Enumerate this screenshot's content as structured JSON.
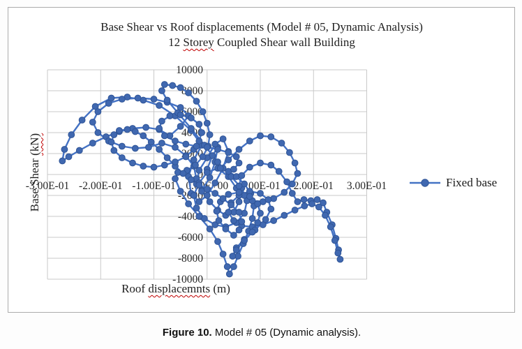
{
  "chart": {
    "title_line1": "Base Shear vs Roof displacements (Model # 05, Dynamic Analysis)",
    "title_line2_parts": [
      "12 ",
      "Storey",
      " Coupled Shear wall Building"
    ],
    "y_axis_title_parts": [
      "Base Shear ",
      "(kN)"
    ],
    "x_axis_title_parts": [
      "Roof ",
      "displacemnts",
      " (m)"
    ],
    "legend_label": "Fixed base"
  },
  "caption": {
    "label": "Figure 10.",
    "text": " Model # 05 (Dynamic analysis)."
  },
  "chart_data": {
    "type": "line",
    "subtype": "scatter-line hysteresis loops (base shear vs roof displacement time history)",
    "title": "Base Shear vs Roof displacements (Model # 05, Dynamic Analysis) 12 Storey Coupled Shear wall Building",
    "xlabel": "Roof displacemnts (m)",
    "ylabel": "Base Shear (kN)",
    "xlim": [
      -0.3,
      0.3
    ],
    "ylim": [
      -10000,
      10000
    ],
    "grid": true,
    "legend_position": "right-middle",
    "x_tick_values": [
      -0.3,
      -0.2,
      -0.1,
      0,
      0.1,
      0.2,
      0.3
    ],
    "x_tick_labels": [
      "-3.00E-01",
      "-2.00E-01",
      "-1.00E-01",
      "0.00E+00",
      "1.00E-01",
      "2.00E-01",
      "3.00E-01"
    ],
    "y_tick_values": [
      10000,
      8000,
      6000,
      4000,
      2000,
      0,
      -2000,
      -4000,
      -6000,
      -8000,
      -10000
    ],
    "y_tick_labels": [
      "10000",
      "8000",
      "6000",
      "4000",
      "2000",
      "0",
      "-2000",
      "-4000",
      "-6000",
      "-8000",
      "-10000"
    ],
    "colors": {
      "series": "#4472C4",
      "marker_fill": "#4068B0",
      "marker_stroke": "#2F5496",
      "gridline": "#c9c9c9",
      "text": "#262626"
    },
    "series": [
      {
        "name": "Fixed base",
        "marker": "circle",
        "points": [
          [
            0.0,
            500
          ],
          [
            0.01,
            1800
          ],
          [
            0.02,
            2600
          ],
          [
            0.015,
            1200
          ],
          [
            0.005,
            -300
          ],
          [
            -0.01,
            -1500
          ],
          [
            -0.02,
            -900
          ],
          [
            -0.015,
            400
          ],
          [
            0.0,
            1600
          ],
          [
            0.015,
            2900
          ],
          [
            0.03,
            3400
          ],
          [
            0.04,
            2200
          ],
          [
            0.03,
            600
          ],
          [
            0.015,
            -800
          ],
          [
            0.0,
            -2000
          ],
          [
            -0.015,
            -2600
          ],
          [
            -0.03,
            -1800
          ],
          [
            -0.035,
            -200
          ],
          [
            -0.025,
            1400
          ],
          [
            -0.01,
            2800
          ],
          [
            -0.03,
            4200
          ],
          [
            -0.06,
            5600
          ],
          [
            -0.09,
            6600
          ],
          [
            -0.12,
            7100
          ],
          [
            -0.15,
            7400
          ],
          [
            -0.18,
            7300
          ],
          [
            -0.21,
            6500
          ],
          [
            -0.235,
            5200
          ],
          [
            -0.255,
            3800
          ],
          [
            -0.268,
            2400
          ],
          [
            -0.272,
            1300
          ],
          [
            -0.26,
            1700
          ],
          [
            -0.24,
            2300
          ],
          [
            -0.215,
            3000
          ],
          [
            -0.19,
            3600
          ],
          [
            -0.165,
            4100
          ],
          [
            -0.14,
            4400
          ],
          [
            -0.115,
            4500
          ],
          [
            -0.09,
            4300
          ],
          [
            -0.07,
            3700
          ],
          [
            -0.05,
            4600
          ],
          [
            -0.035,
            5600
          ],
          [
            -0.05,
            6400
          ],
          [
            -0.075,
            6900
          ],
          [
            -0.1,
            7200
          ],
          [
            -0.13,
            7300
          ],
          [
            -0.16,
            7200
          ],
          [
            -0.185,
            6800
          ],
          [
            -0.205,
            6000
          ],
          [
            -0.215,
            5000
          ],
          [
            -0.205,
            4000
          ],
          [
            -0.185,
            3200
          ],
          [
            -0.16,
            2700
          ],
          [
            -0.135,
            2500
          ],
          [
            -0.11,
            2600
          ],
          [
            -0.085,
            3000
          ],
          [
            -0.06,
            2600
          ],
          [
            -0.04,
            1800
          ],
          [
            -0.025,
            800
          ],
          [
            -0.02,
            -400
          ],
          [
            -0.01,
            -1600
          ],
          [
            0.005,
            -2600
          ],
          [
            0.02,
            -3400
          ],
          [
            0.035,
            -3900
          ],
          [
            0.05,
            -3600
          ],
          [
            0.06,
            -2600
          ],
          [
            0.055,
            -1300
          ],
          [
            0.04,
            -200
          ],
          [
            0.02,
            600
          ],
          [
            0.0,
            200
          ],
          [
            -0.015,
            -800
          ],
          [
            -0.025,
            -2000
          ],
          [
            -0.02,
            -3200
          ],
          [
            -0.005,
            -4200
          ],
          [
            0.015,
            -4800
          ],
          [
            0.035,
            -5000
          ],
          [
            0.055,
            -4600
          ],
          [
            0.07,
            -3700
          ],
          [
            0.075,
            -2500
          ],
          [
            0.065,
            -1300
          ],
          [
            0.045,
            -200
          ],
          [
            0.02,
            1200
          ],
          [
            -0.005,
            2800
          ],
          [
            -0.03,
            4400
          ],
          [
            -0.055,
            5900
          ],
          [
            -0.075,
            7100
          ],
          [
            -0.085,
            8000
          ],
          [
            -0.08,
            8600
          ],
          [
            -0.065,
            8500
          ],
          [
            -0.05,
            8300
          ],
          [
            -0.035,
            7800
          ],
          [
            -0.02,
            7000
          ],
          [
            -0.008,
            6000
          ],
          [
            0.0,
            4900
          ],
          [
            0.005,
            3800
          ],
          [
            0.002,
            2700
          ],
          [
            -0.008,
            1700
          ],
          [
            -0.022,
            900
          ],
          [
            -0.038,
            400
          ],
          [
            -0.055,
            200
          ],
          [
            -0.06,
            -400
          ],
          [
            -0.05,
            -1600
          ],
          [
            -0.035,
            -2800
          ],
          [
            -0.015,
            -4000
          ],
          [
            0.005,
            -5200
          ],
          [
            0.02,
            -6400
          ],
          [
            0.03,
            -7600
          ],
          [
            0.038,
            -8800
          ],
          [
            0.042,
            -9500
          ],
          [
            0.05,
            -8800
          ],
          [
            0.058,
            -7800
          ],
          [
            0.068,
            -6600
          ],
          [
            0.078,
            -5400
          ],
          [
            0.085,
            -4200
          ],
          [
            0.088,
            -3000
          ],
          [
            0.082,
            -1800
          ],
          [
            0.07,
            -900
          ],
          [
            0.055,
            -200
          ],
          [
            0.04,
            300
          ],
          [
            0.025,
            600
          ],
          [
            0.04,
            1400
          ],
          [
            0.06,
            2400
          ],
          [
            0.08,
            3200
          ],
          [
            0.1,
            3700
          ],
          [
            0.12,
            3600
          ],
          [
            0.14,
            3000
          ],
          [
            0.155,
            2100
          ],
          [
            0.165,
            1100
          ],
          [
            0.17,
            100
          ],
          [
            0.16,
            -900
          ],
          [
            0.145,
            -1700
          ],
          [
            0.125,
            -2300
          ],
          [
            0.105,
            -2600
          ],
          [
            0.085,
            -2500
          ],
          [
            0.07,
            -2000
          ],
          [
            0.06,
            -1100
          ],
          [
            0.065,
            -100
          ],
          [
            0.08,
            700
          ],
          [
            0.1,
            1100
          ],
          [
            0.12,
            900
          ],
          [
            0.135,
            300
          ],
          [
            0.15,
            -700
          ],
          [
            0.16,
            -1800
          ],
          [
            0.17,
            -2600
          ],
          [
            0.182,
            -2400
          ],
          [
            0.195,
            -2500
          ],
          [
            0.207,
            -2400
          ],
          [
            0.218,
            -2700
          ],
          [
            0.225,
            -3600
          ],
          [
            0.235,
            -4800
          ],
          [
            0.242,
            -6100
          ],
          [
            0.247,
            -7200
          ],
          [
            0.25,
            -8100
          ],
          [
            0.246,
            -7500
          ],
          [
            0.24,
            -6300
          ],
          [
            0.232,
            -5000
          ],
          [
            0.222,
            -3900
          ],
          [
            0.21,
            -3100
          ],
          [
            0.197,
            -2800
          ],
          [
            0.183,
            -3000
          ],
          [
            0.165,
            -3400
          ],
          [
            0.145,
            -3900
          ],
          [
            0.125,
            -4400
          ],
          [
            0.105,
            -4800
          ],
          [
            0.085,
            -5000
          ],
          [
            0.065,
            -4900
          ],
          [
            0.05,
            -4400
          ],
          [
            0.04,
            -3600
          ],
          [
            0.045,
            -2700
          ],
          [
            0.06,
            -2000
          ],
          [
            0.08,
            -1600
          ],
          [
            0.1,
            -1800
          ],
          [
            0.115,
            -2400
          ],
          [
            0.12,
            -3300
          ],
          [
            0.11,
            -4300
          ],
          [
            0.09,
            -5300
          ],
          [
            0.07,
            -6200
          ],
          [
            0.055,
            -7000
          ],
          [
            0.048,
            -7800
          ],
          [
            0.055,
            -7200
          ],
          [
            0.07,
            -6300
          ],
          [
            0.085,
            -5500
          ],
          [
            0.095,
            -4600
          ],
          [
            0.1,
            -3700
          ],
          [
            0.095,
            -2800
          ],
          [
            0.08,
            -2100
          ],
          [
            0.06,
            -1700
          ],
          [
            0.04,
            -1900
          ],
          [
            0.025,
            -2600
          ],
          [
            0.018,
            -3500
          ],
          [
            0.022,
            -4400
          ],
          [
            0.035,
            -5200
          ],
          [
            0.05,
            -5800
          ],
          [
            0.06,
            -5300
          ],
          [
            0.065,
            -4500
          ],
          [
            0.06,
            -3600
          ],
          [
            0.045,
            -2900
          ],
          [
            0.03,
            -2300
          ],
          [
            0.015,
            -1800
          ],
          [
            0.0,
            -1400
          ],
          [
            -0.015,
            -1000
          ],
          [
            -0.03,
            -500
          ],
          [
            -0.045,
            100
          ],
          [
            -0.06,
            800
          ],
          [
            -0.075,
            1600
          ],
          [
            -0.09,
            2400
          ],
          [
            -0.105,
            3100
          ],
          [
            -0.12,
            3700
          ],
          [
            -0.135,
            4100
          ],
          [
            -0.15,
            4300
          ],
          [
            -0.165,
            4200
          ],
          [
            -0.175,
            3800
          ],
          [
            -0.18,
            3100
          ],
          [
            -0.175,
            2300
          ],
          [
            -0.16,
            1600
          ],
          [
            -0.14,
            1100
          ],
          [
            -0.12,
            800
          ],
          [
            -0.1,
            700
          ],
          [
            -0.08,
            900
          ],
          [
            -0.06,
            1200
          ],
          [
            -0.04,
            1700
          ],
          [
            -0.025,
            2400
          ],
          [
            -0.015,
            3200
          ],
          [
            -0.01,
            4000
          ],
          [
            -0.015,
            4800
          ],
          [
            -0.03,
            5400
          ],
          [
            -0.05,
            5700
          ],
          [
            -0.07,
            5600
          ],
          [
            -0.085,
            5100
          ],
          [
            -0.09,
            4400
          ],
          [
            -0.08,
            3700
          ],
          [
            -0.06,
            3200
          ],
          [
            -0.04,
            2900
          ],
          [
            -0.02,
            2700
          ],
          [
            0.0,
            2600
          ],
          [
            0.02,
            2400
          ],
          [
            0.04,
            2100
          ],
          [
            0.055,
            1700
          ],
          [
            0.06,
            1100
          ],
          [
            0.05,
            500
          ]
        ]
      }
    ]
  }
}
